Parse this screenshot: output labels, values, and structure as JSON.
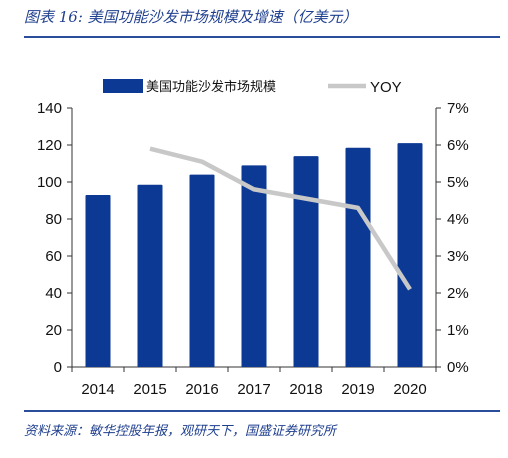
{
  "header": {
    "title": "图表 16:  美国功能沙发市场规模及增速（亿美元）"
  },
  "footer": {
    "source": "资料来源：敏华控股年报，观研天下，国盛证券研究所"
  },
  "colors": {
    "bar": "#0b3994",
    "line": "#c8c8c8",
    "rule": "#2a4d9b",
    "title": "#1f3f8f"
  },
  "chart_data": {
    "type": "bar",
    "categories": [
      "2014",
      "2015",
      "2016",
      "2017",
      "2018",
      "2019",
      "2020"
    ],
    "series": [
      {
        "name": "美国功能沙发市场规模",
        "type": "bar",
        "axis": "left",
        "values": [
          93,
          98.5,
          104,
          109,
          114,
          118.5,
          121
        ]
      },
      {
        "name": "YOY",
        "type": "line",
        "axis": "right",
        "values": [
          null,
          5.9,
          5.55,
          4.8,
          4.55,
          4.3,
          2.1
        ]
      }
    ],
    "yleft": {
      "lim": [
        0,
        140
      ],
      "ticks": [
        "0",
        "20",
        "40",
        "60",
        "80",
        "100",
        "120",
        "140"
      ]
    },
    "yright": {
      "lim": [
        0,
        7
      ],
      "ticks": [
        "0%",
        "1%",
        "2%",
        "3%",
        "4%",
        "5%",
        "6%",
        "7%"
      ]
    },
    "legend_position": "top",
    "grid": false
  }
}
